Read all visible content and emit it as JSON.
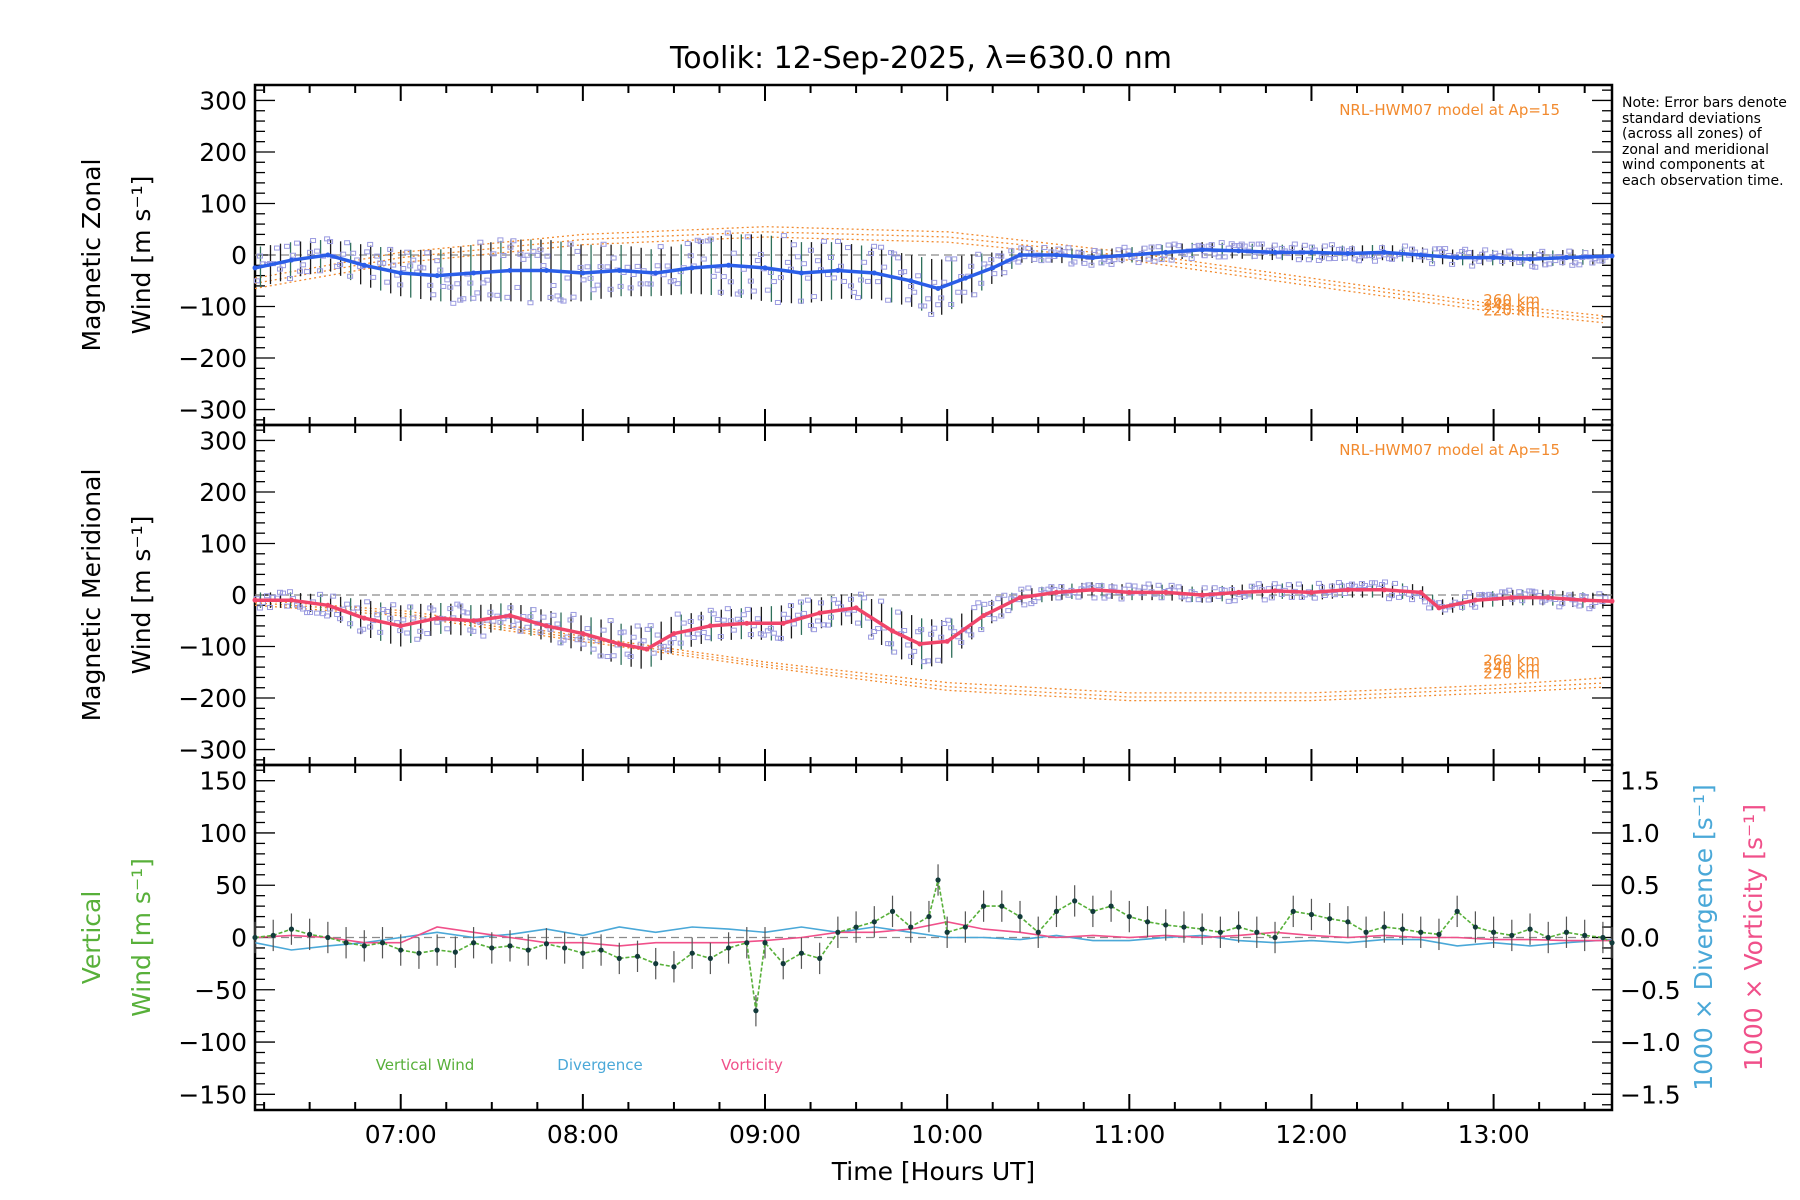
{
  "title": "Toolik: 12-Sep-2025, λ=630.0 nm",
  "note": "Note: Error bars denote standard deviations (across all zones) of zonal and meridional wind components at each observation time.",
  "colors": {
    "zonal": "#2b5ee8",
    "meridional": "#f0456a",
    "vertical": "#58b03a",
    "divergence": "#4aa8d8",
    "vorticity": "#f0508a",
    "model": "#f28a2e",
    "scatter": "#9a9ae0",
    "axis": "#000000",
    "zero": "#8a8a8a"
  },
  "chart_data": [
    {
      "panel": "zonal",
      "type": "line",
      "ylabel_line1": "Magnetic Zonal",
      "ylabel_line2": "Wind [m s⁻¹]",
      "ylim": [
        -330,
        330
      ],
      "yticks": [
        300,
        200,
        100,
        0,
        -100,
        -200,
        -300
      ],
      "xlim": [
        6.2,
        13.65
      ],
      "model_label": "NRL-HWM07 model at Ap=15",
      "model_heights": [
        "260 km",
        "240 km",
        "220 km"
      ],
      "series": [
        {
          "name": "Zonal wind",
          "x": [
            6.2,
            6.4,
            6.6,
            6.8,
            7.0,
            7.2,
            7.4,
            7.6,
            7.8,
            8.0,
            8.2,
            8.4,
            8.6,
            8.8,
            9.0,
            9.2,
            9.4,
            9.6,
            9.8,
            9.95,
            10.1,
            10.25,
            10.4,
            10.6,
            10.8,
            11.0,
            11.2,
            11.4,
            11.6,
            11.8,
            12.0,
            12.2,
            12.4,
            12.6,
            12.8,
            13.0,
            13.2,
            13.4,
            13.65
          ],
          "values": [
            -25,
            -10,
            0,
            -20,
            -35,
            -40,
            -35,
            -30,
            -30,
            -35,
            -30,
            -35,
            -25,
            -20,
            -25,
            -35,
            -30,
            -35,
            -50,
            -65,
            -45,
            -25,
            0,
            0,
            -5,
            0,
            5,
            10,
            8,
            5,
            5,
            3,
            5,
            0,
            -5,
            -5,
            -8,
            -5,
            -2
          ],
          "err": [
            40,
            35,
            30,
            40,
            45,
            50,
            55,
            60,
            60,
            55,
            50,
            45,
            50,
            60,
            65,
            60,
            55,
            50,
            50,
            55,
            45,
            30,
            15,
            15,
            15,
            15,
            15,
            15,
            15,
            15,
            15,
            15,
            15,
            15,
            15,
            15,
            15,
            15,
            15
          ]
        }
      ],
      "models": [
        {
          "name": "260 km",
          "x": [
            6.2,
            7.0,
            8.0,
            9.0,
            10.0,
            11.0,
            12.0,
            13.0,
            13.65
          ],
          "values": [
            -45,
            5,
            40,
            55,
            45,
            5,
            -45,
            -95,
            -120
          ]
        },
        {
          "name": "240 km",
          "x": [
            6.2,
            7.0,
            8.0,
            9.0,
            10.0,
            11.0,
            12.0,
            13.0,
            13.65
          ],
          "values": [
            -55,
            -5,
            30,
            45,
            35,
            -2,
            -52,
            -102,
            -126
          ]
        },
        {
          "name": "220 km",
          "x": [
            6.2,
            7.0,
            8.0,
            9.0,
            10.0,
            11.0,
            12.0,
            13.0,
            13.65
          ],
          "values": [
            -65,
            -15,
            20,
            35,
            25,
            -10,
            -60,
            -110,
            -133
          ]
        }
      ]
    },
    {
      "panel": "meridional",
      "type": "line",
      "ylabel_line1": "Magnetic Meridional",
      "ylabel_line2": "Wind [m s⁻¹]",
      "ylim": [
        -330,
        330
      ],
      "yticks": [
        300,
        200,
        100,
        0,
        -100,
        -200,
        -300
      ],
      "xlim": [
        6.2,
        13.65
      ],
      "model_label": "NRL-HWM07 model at Ap=15",
      "model_heights": [
        "260 km",
        "240 km",
        "220 km"
      ],
      "series": [
        {
          "name": "Meridional wind",
          "x": [
            6.2,
            6.4,
            6.6,
            6.8,
            7.0,
            7.2,
            7.4,
            7.6,
            7.8,
            8.0,
            8.2,
            8.35,
            8.5,
            8.7,
            8.9,
            9.1,
            9.3,
            9.5,
            9.7,
            9.85,
            10.0,
            10.2,
            10.4,
            10.6,
            10.8,
            11.0,
            11.2,
            11.4,
            11.6,
            11.8,
            12.0,
            12.2,
            12.4,
            12.6,
            12.7,
            12.9,
            13.1,
            13.3,
            13.5,
            13.65
          ],
          "values": [
            -10,
            -10,
            -20,
            -45,
            -60,
            -45,
            -50,
            -40,
            -60,
            -75,
            -95,
            -105,
            -75,
            -60,
            -55,
            -55,
            -35,
            -25,
            -70,
            -95,
            -90,
            -40,
            -5,
            5,
            10,
            5,
            5,
            0,
            5,
            8,
            5,
            10,
            10,
            5,
            -25,
            -10,
            -5,
            -5,
            -10,
            -12
          ],
          "err": [
            15,
            15,
            20,
            35,
            40,
            30,
            30,
            25,
            30,
            35,
            40,
            40,
            35,
            30,
            30,
            35,
            30,
            30,
            45,
            50,
            40,
            25,
            15,
            15,
            15,
            15,
            15,
            15,
            15,
            15,
            15,
            15,
            15,
            15,
            15,
            15,
            15,
            15,
            15,
            15
          ]
        }
      ],
      "models": [
        {
          "name": "260 km",
          "x": [
            6.2,
            7.0,
            8.0,
            9.0,
            10.0,
            11.0,
            12.0,
            13.0,
            13.65
          ],
          "values": [
            -10,
            -30,
            -80,
            -130,
            -170,
            -190,
            -190,
            -175,
            -160
          ]
        },
        {
          "name": "240 km",
          "x": [
            6.2,
            7.0,
            8.0,
            9.0,
            10.0,
            11.0,
            12.0,
            13.0,
            13.65
          ],
          "values": [
            -15,
            -35,
            -85,
            -135,
            -178,
            -198,
            -198,
            -182,
            -170
          ]
        },
        {
          "name": "220 km",
          "x": [
            6.2,
            7.0,
            8.0,
            9.0,
            10.0,
            11.0,
            12.0,
            13.0,
            13.65
          ],
          "values": [
            -20,
            -40,
            -90,
            -140,
            -185,
            -205,
            -205,
            -190,
            -178
          ]
        }
      ]
    },
    {
      "panel": "vertical",
      "type": "line",
      "ylabel_line1": "Vertical",
      "ylabel_line2": "Wind [m s⁻¹]",
      "right_ylabel_div": "1000 × Divergence [s⁻¹]",
      "right_ylabel_vort": "1000 × Vorticity [s⁻¹]",
      "ylim": [
        -165,
        165
      ],
      "yticks": [
        150,
        100,
        50,
        0,
        -50,
        -100,
        -150
      ],
      "right_ylim": [
        -1.65,
        1.65
      ],
      "right_yticks": [
        "1.5",
        "1.0",
        "0.5",
        "0.0",
        "−0.5",
        "−1.0",
        "−1.5"
      ],
      "xlim": [
        6.2,
        13.65
      ],
      "xticks": [
        "07:00",
        "08:00",
        "09:00",
        "10:00",
        "11:00",
        "12:00",
        "13:00"
      ],
      "xlabel": "Time [Hours UT]",
      "legend": [
        "Vertical Wind",
        "Divergence",
        "Vorticity"
      ],
      "series": [
        {
          "name": "Vertical Wind",
          "x": [
            6.2,
            6.3,
            6.4,
            6.5,
            6.6,
            6.7,
            6.8,
            6.9,
            7.0,
            7.1,
            7.2,
            7.3,
            7.4,
            7.5,
            7.6,
            7.7,
            7.8,
            7.9,
            8.0,
            8.1,
            8.2,
            8.3,
            8.4,
            8.5,
            8.6,
            8.7,
            8.8,
            8.9,
            8.95,
            9.0,
            9.1,
            9.2,
            9.3,
            9.4,
            9.5,
            9.6,
            9.7,
            9.8,
            9.9,
            9.95,
            10.0,
            10.1,
            10.2,
            10.3,
            10.4,
            10.5,
            10.6,
            10.7,
            10.8,
            10.9,
            11.0,
            11.1,
            11.2,
            11.3,
            11.4,
            11.5,
            11.6,
            11.7,
            11.8,
            11.9,
            12.0,
            12.1,
            12.2,
            12.3,
            12.4,
            12.5,
            12.6,
            12.7,
            12.8,
            12.9,
            13.0,
            13.1,
            13.2,
            13.3,
            13.4,
            13.5,
            13.6,
            13.65
          ],
          "values": [
            0,
            2,
            8,
            3,
            0,
            -5,
            -8,
            -5,
            -12,
            -15,
            -12,
            -14,
            -5,
            -10,
            -8,
            -12,
            -6,
            -10,
            -15,
            -12,
            -20,
            -18,
            -25,
            -28,
            -15,
            -20,
            -10,
            -5,
            -70,
            -5,
            -25,
            -15,
            -20,
            5,
            10,
            15,
            25,
            10,
            20,
            55,
            5,
            10,
            30,
            30,
            20,
            5,
            25,
            35,
            25,
            30,
            20,
            15,
            12,
            10,
            8,
            5,
            10,
            5,
            0,
            25,
            22,
            18,
            15,
            5,
            10,
            8,
            5,
            3,
            25,
            10,
            5,
            2,
            8,
            0,
            5,
            2,
            0,
            -5
          ],
          "err": 15
        },
        {
          "name": "Divergence",
          "x": [
            6.2,
            6.4,
            6.6,
            6.8,
            7.0,
            7.2,
            7.4,
            7.6,
            7.8,
            8.0,
            8.2,
            8.4,
            8.6,
            8.8,
            9.0,
            9.2,
            9.4,
            9.6,
            9.8,
            10.0,
            10.2,
            10.4,
            10.6,
            10.8,
            11.0,
            11.2,
            11.4,
            11.6,
            11.8,
            12.0,
            12.2,
            12.4,
            12.6,
            12.8,
            13.0,
            13.2,
            13.4,
            13.65
          ],
          "values": [
            -0.05,
            -0.12,
            -0.08,
            -0.05,
            0.0,
            0.05,
            0.0,
            0.03,
            0.08,
            0.02,
            0.1,
            0.05,
            0.1,
            0.08,
            0.05,
            0.1,
            0.05,
            0.1,
            0.05,
            0.0,
            0.0,
            -0.02,
            0.02,
            -0.03,
            -0.03,
            0.0,
            0.02,
            -0.03,
            -0.05,
            -0.03,
            -0.05,
            -0.02,
            -0.02,
            -0.08,
            -0.05,
            -0.08,
            -0.05,
            -0.02
          ]
        },
        {
          "name": "Vorticity",
          "x": [
            6.2,
            6.4,
            6.6,
            6.8,
            7.0,
            7.2,
            7.4,
            7.6,
            7.8,
            8.0,
            8.2,
            8.4,
            8.6,
            8.8,
            9.0,
            9.2,
            9.4,
            9.6,
            9.8,
            10.0,
            10.2,
            10.4,
            10.6,
            10.8,
            11.0,
            11.2,
            11.4,
            11.6,
            11.8,
            12.0,
            12.2,
            12.4,
            12.6,
            12.8,
            13.0,
            13.2,
            13.4,
            13.65
          ],
          "values": [
            0.0,
            0.02,
            0.0,
            -0.05,
            -0.05,
            0.1,
            0.05,
            0.0,
            -0.05,
            -0.05,
            -0.08,
            -0.05,
            -0.05,
            -0.05,
            -0.03,
            0.0,
            0.05,
            0.05,
            0.08,
            0.15,
            0.08,
            0.05,
            0.0,
            0.02,
            0.0,
            0.02,
            0.0,
            0.02,
            0.05,
            0.02,
            0.0,
            0.02,
            0.0,
            0.0,
            -0.02,
            -0.02,
            -0.03,
            -0.03
          ]
        }
      ]
    }
  ]
}
